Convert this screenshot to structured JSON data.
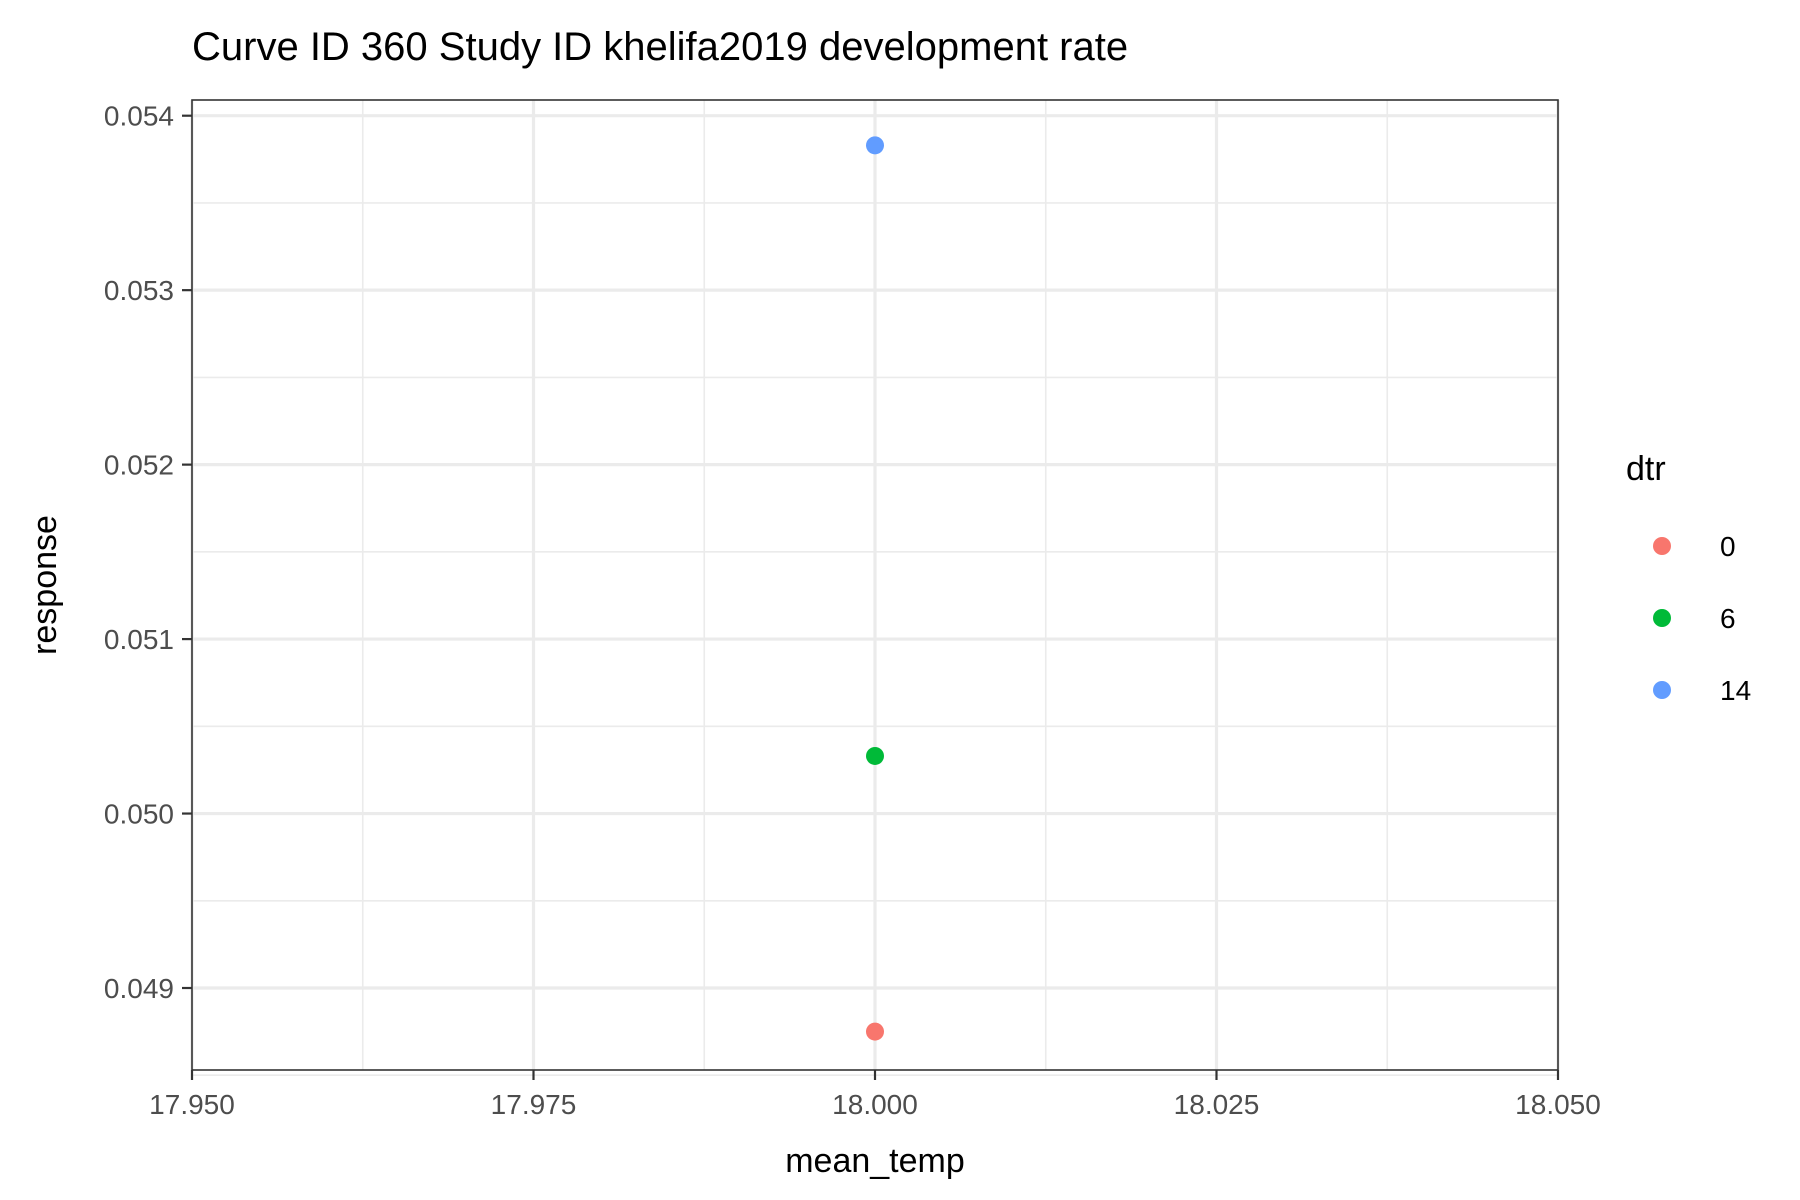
{
  "chart_data": {
    "type": "scatter",
    "title": "Curve ID 360 Study ID khelifa2019 development rate",
    "xlabel": "mean_temp",
    "ylabel": "response",
    "xlim": [
      17.95,
      18.05
    ],
    "ylim": [
      0.04853,
      0.05409
    ],
    "x_ticks": [
      17.95,
      17.975,
      18.0,
      18.025,
      18.05
    ],
    "x_tick_labels": [
      "17.950",
      "17.975",
      "18.000",
      "18.025",
      "18.050"
    ],
    "x_minor_ticks": [
      17.9625,
      17.9875,
      18.0125,
      18.0375
    ],
    "y_ticks": [
      0.049,
      0.05,
      0.051,
      0.052,
      0.053,
      0.054
    ],
    "y_tick_labels": [
      "0.049",
      "0.050",
      "0.051",
      "0.052",
      "0.053",
      "0.054"
    ],
    "y_minor_ticks": [
      0.0485,
      0.0495,
      0.0505,
      0.0515,
      0.0525,
      0.0535
    ],
    "grid": true,
    "legend": {
      "title": "dtr",
      "position": "right",
      "entries": [
        {
          "label": "0",
          "color": "#F8766D"
        },
        {
          "label": "6",
          "color": "#00BA38"
        },
        {
          "label": "14",
          "color": "#619CFF"
        }
      ]
    },
    "points": [
      {
        "x": 18.0,
        "y": 0.04875,
        "dtr": "0",
        "color": "#F8766D"
      },
      {
        "x": 18.0,
        "y": 0.05033,
        "dtr": "6",
        "color": "#00BA38"
      },
      {
        "x": 18.0,
        "y": 0.05383,
        "dtr": "14",
        "color": "#619CFF"
      }
    ]
  }
}
